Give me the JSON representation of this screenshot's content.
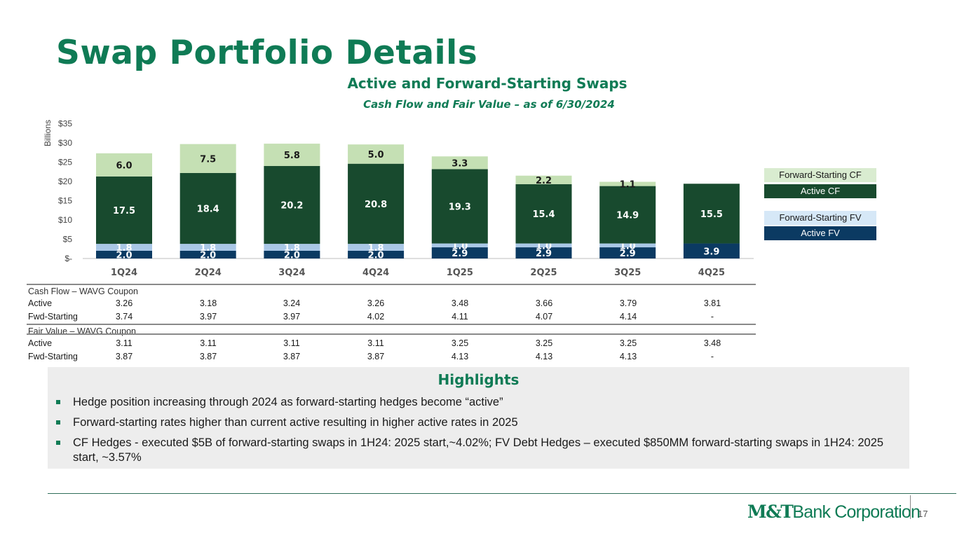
{
  "slide": {
    "title": "Swap Portfolio Details",
    "page_number": "17",
    "logo_bold": "M&T",
    "logo_light": "Bank Corporation"
  },
  "chart_data": {
    "type": "bar",
    "stacked": true,
    "title": "Active and Forward-Starting Swaps",
    "subtitle": "Cash Flow and Fair Value – as of 6/30/2024",
    "ylabel": "Billions",
    "ylim": [
      0,
      35
    ],
    "yticks": [
      "$-",
      "$5",
      "$10",
      "$15",
      "$20",
      "$25",
      "$30",
      "$35"
    ],
    "categories": [
      "1Q24",
      "2Q24",
      "3Q24",
      "4Q24",
      "1Q25",
      "2Q25",
      "3Q25",
      "4Q25"
    ],
    "series": [
      {
        "name": "Active FV",
        "color": "#0b3a62",
        "values": [
          2.0,
          2.0,
          2.0,
          2.0,
          2.9,
          2.9,
          2.9,
          3.9
        ],
        "labels": [
          "2.0",
          "2.0",
          "2.0",
          "2.0",
          "2.9",
          "2.9",
          "2.9",
          "3.9"
        ],
        "label_color": "#ffffff"
      },
      {
        "name": "Forward-Starting FV",
        "color": "#a9c7e6",
        "values": [
          1.8,
          1.8,
          1.8,
          1.8,
          1.0,
          1.0,
          1.0,
          0
        ],
        "labels": [
          "1.8",
          "1.8",
          "1.8",
          "1.8",
          "1.0",
          "1.0",
          "1.0",
          ""
        ],
        "label_color": "#ffffff"
      },
      {
        "name": "Active CF",
        "color": "#184a2e",
        "values": [
          17.5,
          18.4,
          20.2,
          20.8,
          19.3,
          15.4,
          14.9,
          15.5
        ],
        "labels": [
          "17.5",
          "18.4",
          "20.2",
          "20.8",
          "19.3",
          "15.4",
          "14.9",
          "15.5"
        ],
        "label_color": "#ffffff"
      },
      {
        "name": "Forward-Starting CF",
        "color": "#c5e0b4",
        "values": [
          6.0,
          7.5,
          5.8,
          5.0,
          3.3,
          2.2,
          1.1,
          0
        ],
        "labels": [
          "6.0",
          "7.5",
          "5.8",
          "5.0",
          "3.3",
          "2.2",
          "1.1",
          ""
        ],
        "label_color": "#1a1a1a"
      }
    ],
    "grid": false,
    "legend_position": "right"
  },
  "legend": [
    {
      "label": "Forward-Starting CF",
      "bg": "#d9ecd0",
      "fg": "#1a1a1a"
    },
    {
      "label": "Active CF",
      "bg": "#184a2e",
      "fg": "#ffffff"
    },
    {
      "label": "Forward-Starting FV",
      "bg": "#d6e8f7",
      "fg": "#1a1a1a"
    },
    {
      "label": "Active FV",
      "bg": "#0b3a62",
      "fg": "#ffffff"
    }
  ],
  "table": {
    "cf_header": "Cash  Flow – WAVG Coupon",
    "cf_rows": [
      {
        "label": "Active",
        "values": [
          "3.26",
          "3.18",
          "3.24",
          "3.26",
          "3.48",
          "3.66",
          "3.79",
          "3.81"
        ]
      },
      {
        "label": "Fwd-Starting",
        "values": [
          "3.74",
          "3.97",
          "3.97",
          "4.02",
          "4.11",
          "4.07",
          "4.14",
          "-"
        ]
      }
    ],
    "fv_header": "Fair Value – WAVG Coupon",
    "fv_rows": [
      {
        "label": "Active",
        "values": [
          "3.11",
          "3.11",
          "3.11",
          "3.11",
          "3.25",
          "3.25",
          "3.25",
          "3.48"
        ]
      },
      {
        "label": "Fwd-Starting",
        "values": [
          "3.87",
          "3.87",
          "3.87",
          "3.87",
          "4.13",
          "4.13",
          "4.13",
          "-"
        ]
      }
    ]
  },
  "highlights": {
    "title": "Highlights",
    "bullets": [
      "Hedge position increasing through 2024 as forward-starting hedges become “active”",
      "Forward-starting rates higher than current active resulting in higher active rates in 2025",
      "CF Hedges - executed $5B of forward-starting swaps in 1H24: 2025 start,~4.02%; FV Debt Hedges – executed $850MM forward-starting swaps in 1H24: 2025 start, ~3.57%"
    ]
  }
}
